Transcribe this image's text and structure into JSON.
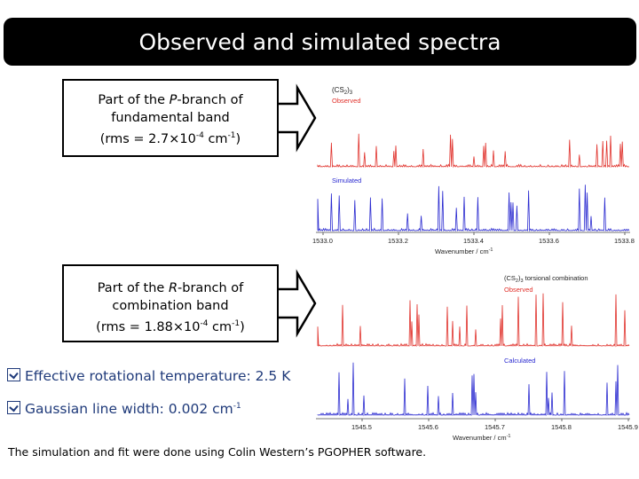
{
  "title": "Observed and simulated spectra",
  "box1": {
    "line1_pre": "Part of the ",
    "line1_it": "P",
    "line1_post": "-branch of",
    "line2": "fundamental band",
    "rms_pre": "(rms = 2.7",
    "times": "×",
    "rms_base": "10",
    "rms_exp": "-4",
    "rms_unit": " cm",
    "rms_unit_exp": "-1",
    "rms_close": ")"
  },
  "box2": {
    "line1_pre": "Part of the ",
    "line1_it": "R",
    "line1_post": "-branch of",
    "line2": "combination band",
    "rms_pre": "(rms = 1.88",
    "times": "×",
    "rms_base": "10",
    "rms_exp": "-4",
    "rms_unit": " cm",
    "rms_unit_exp": "-1",
    "rms_close": ")"
  },
  "spectrum1": {
    "species": "(CS",
    "species_sub1": "2",
    "species_mid": ")",
    "species_sub2": "3",
    "label_observed": "Observed",
    "label_simulated": "Simulated",
    "xticks": [
      "1533.0",
      "1533.2",
      "1533.4",
      "1533.6",
      "1533.8"
    ],
    "xlabel": "Wavenumber / cm",
    "xlabel_exp": "-1",
    "colors": {
      "observed": "#e0302a",
      "simulated": "#2a2ad0"
    }
  },
  "spectrum2": {
    "species": "(CS",
    "species_sub1": "2",
    "species_mid": ")",
    "species_sub2": "3",
    "species_suffix": " torsional combination",
    "label_observed": "Observed",
    "label_calculated": "Calculated",
    "xticks": [
      "1545.5",
      "1545.6",
      "1545.7",
      "1545.8",
      "1545.9"
    ],
    "xlabel": "Wavenumber / cm",
    "xlabel_exp": "-1",
    "colors": {
      "observed": "#e0302a",
      "calculated": "#2a2ad0"
    }
  },
  "bullets": [
    {
      "text": "Effective rotational temperature: 2.5 K"
    },
    {
      "text": "Gaussian line width: 0.002 cm",
      "exp": "-1"
    }
  ],
  "footer": "The simulation and fit were done using Colin Western’s PGOPHER software."
}
